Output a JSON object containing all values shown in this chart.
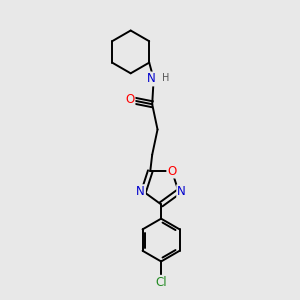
{
  "background_color": "#e8e8e8",
  "atom_colors": {
    "C": "#000000",
    "N": "#0000cd",
    "O": "#ff0000",
    "Cl": "#228b22",
    "H": "#555555"
  },
  "bond_color": "#000000",
  "font_size_atom": 8.5,
  "figsize": [
    3.0,
    3.0
  ],
  "dpi": 100
}
